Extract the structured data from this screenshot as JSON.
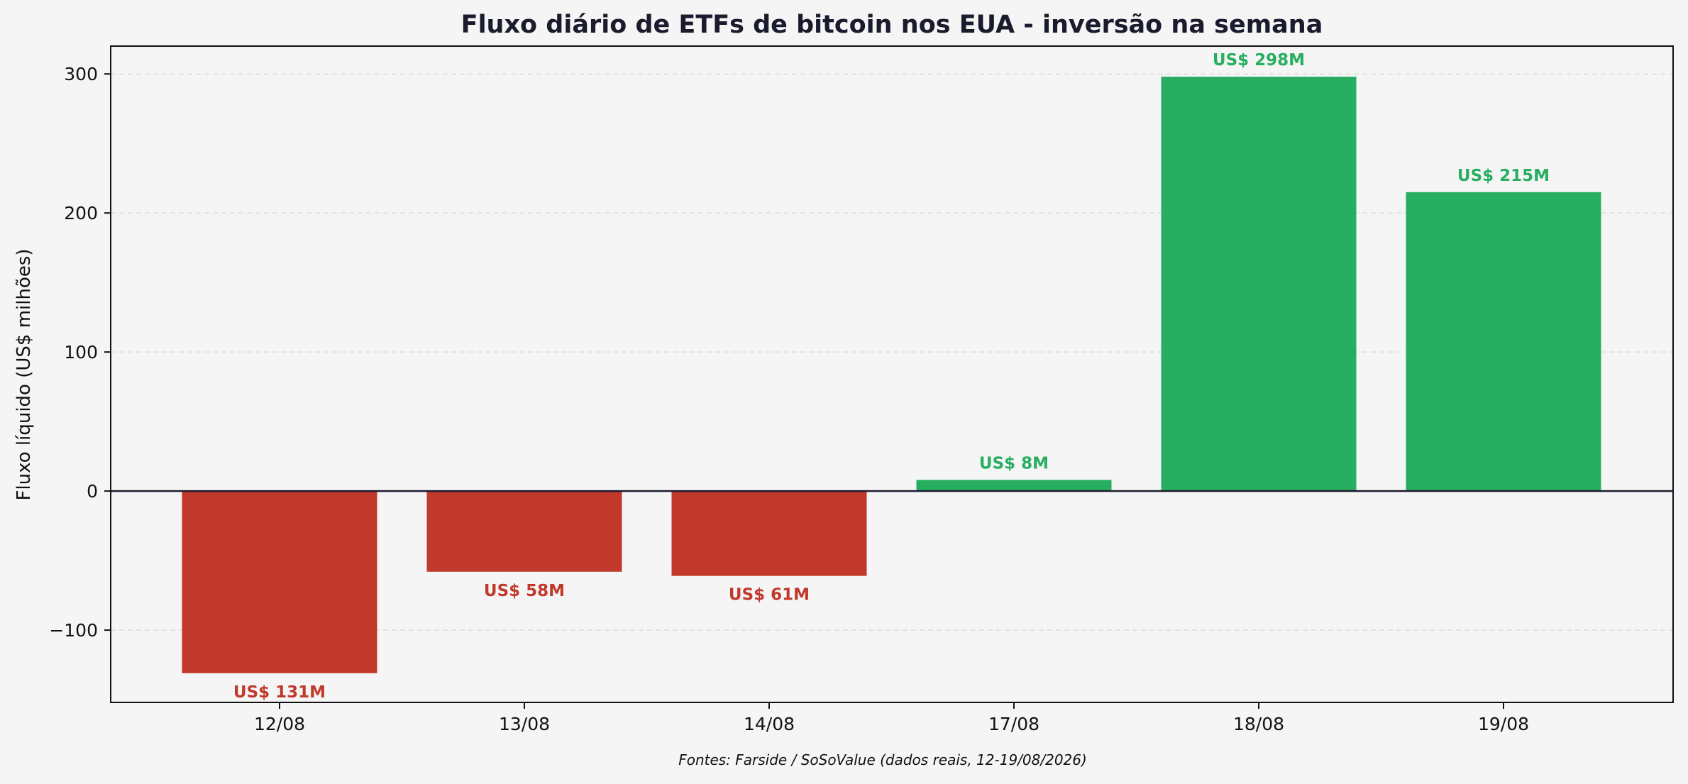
{
  "chart_data": {
    "type": "bar",
    "title": "Fluxo diário de ETFs de bitcoin nos EUA - inversão na semana",
    "xlabel": "",
    "ylabel": "Fluxo líquido (US$ milhões)",
    "source": "Fontes: Farside / SoSoValue (dados reais, 12-19/08/2026)",
    "categories": [
      "12/08",
      "13/08",
      "14/08",
      "17/08",
      "18/08",
      "19/08"
    ],
    "values": [
      -131,
      -58,
      -61,
      8,
      298,
      215
    ],
    "data_labels": [
      "US$ 131M",
      "US$ 58M",
      "US$ 61M",
      "US$ 8M",
      "US$ 298M",
      "US$ 215M"
    ],
    "ylim": [
      -152,
      320
    ],
    "yticks": [
      -100,
      0,
      100,
      200,
      300
    ],
    "ytick_labels": [
      "−100",
      "0",
      "100",
      "200",
      "300"
    ],
    "grid": true,
    "colors": {
      "positive": "#27ae60",
      "negative": "#c0392b",
      "negative_label": "#c0392b",
      "positive_label": "#27ae60",
      "grid": "#dddddd",
      "zero_line": "#1b1b2e",
      "background": "#f5f5f5"
    }
  }
}
